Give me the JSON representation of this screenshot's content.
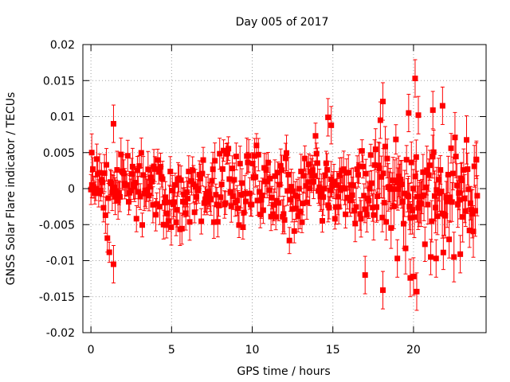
{
  "chart_data": {
    "type": "scatter",
    "title": "Day 005 of 2017",
    "xlabel": "GPS time / hours",
    "ylabel": "GNSS Solar Flare indicator / TECUs",
    "xlim": [
      -0.5,
      24.5
    ],
    "ylim": [
      -0.02,
      0.02
    ],
    "xticks": [
      0,
      5,
      10,
      15,
      20
    ],
    "yticks": [
      -0.02,
      -0.015,
      -0.01,
      -0.005,
      0,
      0.005,
      0.01,
      0.015,
      0.02
    ],
    "xtick_labels": [
      "0",
      "5",
      "10",
      "15",
      "20"
    ],
    "ytick_labels": [
      "-0.02",
      "-0.015",
      "-0.01",
      "-0.005",
      "0",
      "0.005",
      "0.01",
      "0.015",
      "0.02"
    ],
    "grid": true,
    "legend": "none",
    "series_color": "#ff0000",
    "marker": "square",
    "error_bars": true,
    "x_range": [
      0,
      23.95
    ],
    "n_points": 400,
    "typical_spread": 0.005,
    "typical_error": 0.002,
    "notable_points": [
      {
        "x": 0.05,
        "y": 0.005
      },
      {
        "x": 1.4,
        "y": 0.009
      },
      {
        "x": 1.4,
        "y": -0.0105
      },
      {
        "x": 14.7,
        "y": 0.0099
      },
      {
        "x": 14.9,
        "y": 0.0088
      },
      {
        "x": 17.0,
        "y": -0.012
      },
      {
        "x": 18.1,
        "y": 0.0121
      },
      {
        "x": 18.1,
        "y": -0.0141
      },
      {
        "x": 19.0,
        "y": -0.0097
      },
      {
        "x": 19.7,
        "y": 0.0105
      },
      {
        "x": 19.8,
        "y": -0.0124
      },
      {
        "x": 20.0,
        "y": -0.0122
      },
      {
        "x": 20.1,
        "y": 0.0153
      },
      {
        "x": 20.2,
        "y": -0.0143
      },
      {
        "x": 20.3,
        "y": 0.0102
      },
      {
        "x": 21.2,
        "y": 0.0109
      },
      {
        "x": 21.4,
        "y": -0.0097
      },
      {
        "x": 21.8,
        "y": 0.0115
      },
      {
        "x": 22.9,
        "y": -0.0091
      },
      {
        "x": 23.9,
        "y": 0.004
      }
    ]
  }
}
